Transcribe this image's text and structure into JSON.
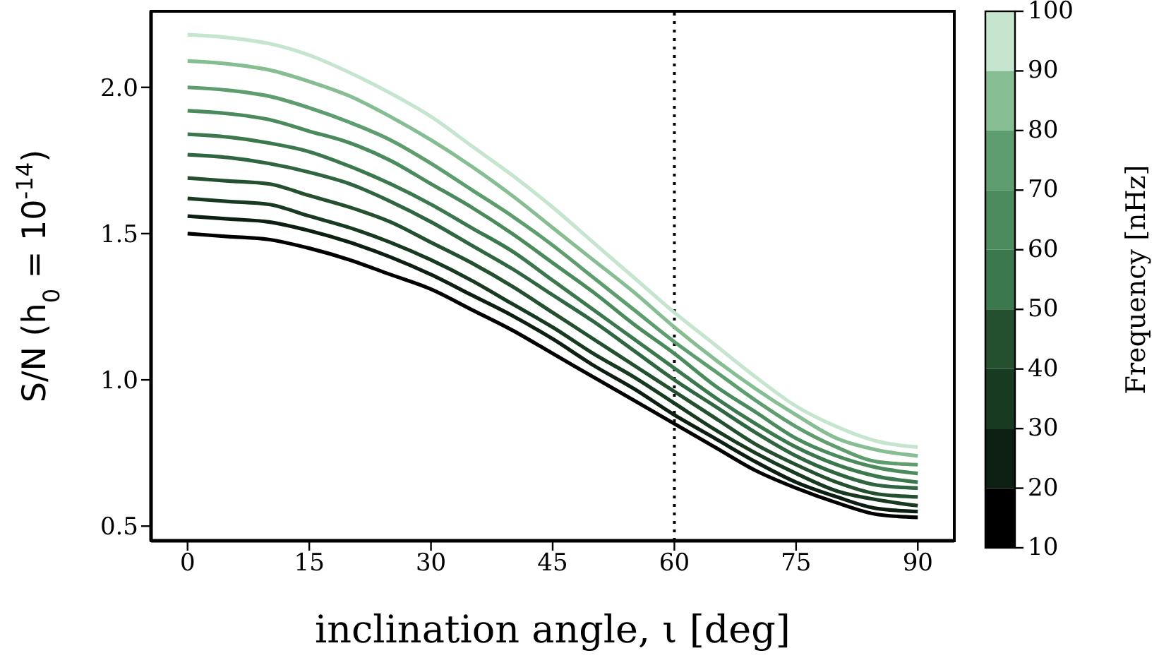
{
  "chart_data": {
    "type": "line",
    "xlabel": "inclination angle, ι [deg]",
    "ylabel": "S/N (h$_{0}$ = 10$^{-14}$)",
    "clabel": "Frequency [nHz]",
    "clim": [
      10,
      100
    ],
    "cticks": [
      10,
      20,
      30,
      40,
      50,
      60,
      70,
      80,
      90,
      100
    ],
    "x": [
      0,
      5,
      10,
      15,
      20,
      25,
      30,
      35,
      40,
      45,
      50,
      55,
      60,
      65,
      70,
      75,
      80,
      85,
      90
    ],
    "xlim": [
      -4.5,
      94.5
    ],
    "xticks": [
      0,
      15,
      30,
      45,
      60,
      75,
      90
    ],
    "ylim": [
      0.45,
      2.26
    ],
    "yticks": [
      0.5,
      {
        "value": 1,
        "label": "1.0"
      },
      1.5,
      {
        "value": 2,
        "label": "2.0"
      }
    ],
    "grid": false,
    "legend": false,
    "marker": "none",
    "line_style": "solid",
    "ref_lines": [
      {
        "axis": "x",
        "value": 60,
        "color": "#000000",
        "line_style": "dotted"
      }
    ],
    "series": [
      {
        "color": "#000000",
        "values": [
          1.5,
          1.49,
          1.48,
          1.45,
          1.41,
          1.36,
          1.31,
          1.24,
          1.17,
          1.09,
          1.01,
          0.93,
          0.85,
          0.77,
          0.69,
          0.63,
          0.58,
          0.54,
          0.53
        ]
      },
      {
        "color": "#0c1f12",
        "values": [
          1.56,
          1.55,
          1.54,
          1.51,
          1.47,
          1.42,
          1.36,
          1.29,
          1.22,
          1.14,
          1.05,
          0.97,
          0.88,
          0.8,
          0.72,
          0.65,
          0.6,
          0.56,
          0.55
        ]
      },
      {
        "color": "#173a21",
        "values": [
          1.62,
          1.61,
          1.6,
          1.56,
          1.52,
          1.47,
          1.41,
          1.34,
          1.26,
          1.18,
          1.09,
          1.01,
          0.92,
          0.83,
          0.75,
          0.68,
          0.62,
          0.59,
          0.57
        ]
      },
      {
        "color": "#24502f",
        "values": [
          1.69,
          1.68,
          1.67,
          1.63,
          1.59,
          1.54,
          1.47,
          1.4,
          1.32,
          1.23,
          1.14,
          1.05,
          0.96,
          0.87,
          0.78,
          0.71,
          0.65,
          0.61,
          0.6
        ]
      },
      {
        "color": "#2f6540",
        "values": [
          1.77,
          1.76,
          1.74,
          1.71,
          1.67,
          1.61,
          1.54,
          1.46,
          1.38,
          1.29,
          1.2,
          1.1,
          1.0,
          0.91,
          0.82,
          0.74,
          0.68,
          0.64,
          0.63
        ]
      },
      {
        "color": "#3c784d",
        "values": [
          1.84,
          1.83,
          1.81,
          1.78,
          1.73,
          1.67,
          1.6,
          1.52,
          1.44,
          1.34,
          1.24,
          1.14,
          1.04,
          0.94,
          0.85,
          0.77,
          0.71,
          0.67,
          0.65
        ]
      },
      {
        "color": "#4b8a5c",
        "values": [
          1.92,
          1.91,
          1.89,
          1.85,
          1.81,
          1.75,
          1.67,
          1.59,
          1.5,
          1.4,
          1.3,
          1.19,
          1.09,
          0.98,
          0.89,
          0.8,
          0.74,
          0.7,
          0.68
        ]
      },
      {
        "color": "#5e9d6e",
        "values": [
          2.0,
          1.99,
          1.97,
          1.93,
          1.88,
          1.82,
          1.74,
          1.65,
          1.56,
          1.46,
          1.35,
          1.24,
          1.13,
          1.03,
          0.93,
          0.84,
          0.77,
          0.72,
          0.71
        ]
      },
      {
        "color": "#86bd92",
        "values": [
          2.09,
          2.08,
          2.06,
          2.02,
          1.97,
          1.9,
          1.82,
          1.73,
          1.63,
          1.52,
          1.41,
          1.3,
          1.18,
          1.07,
          0.97,
          0.88,
          0.8,
          0.76,
          0.74
        ]
      },
      {
        "color": "#c6e5ce",
        "values": [
          2.18,
          2.17,
          2.15,
          2.11,
          2.05,
          1.98,
          1.9,
          1.8,
          1.7,
          1.59,
          1.47,
          1.35,
          1.23,
          1.12,
          1.01,
          0.91,
          0.84,
          0.79,
          0.77
        ]
      }
    ]
  }
}
